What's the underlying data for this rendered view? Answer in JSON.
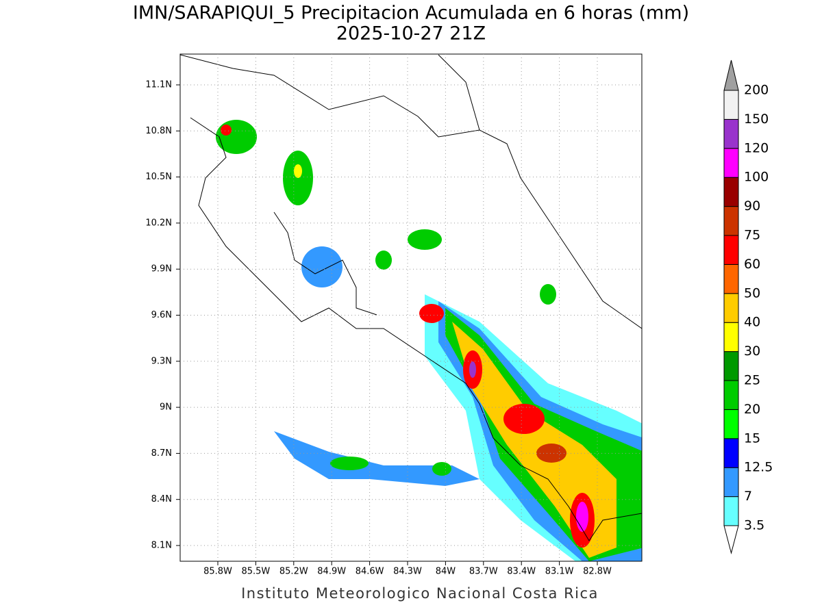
{
  "header": {
    "title": "IMN/SARAPIQUI_5 Precipitacion Acumulada en 6 horas (mm)",
    "subtitle": "2025-10-27 21Z"
  },
  "map": {
    "x_ticks": [
      "85.8W",
      "85.5W",
      "85.2W",
      "84.9W",
      "84.6W",
      "84.3W",
      "84W",
      "83.7W",
      "83.4W",
      "83.1W",
      "82.8W"
    ],
    "y_ticks": [
      "11.1N",
      "10.8N",
      "10.5N",
      "10.2N",
      "9.9N",
      "9.6N",
      "9.3N",
      "9N",
      "8.7N",
      "8.4N",
      "8.1N"
    ]
  },
  "colorbar": {
    "levels": [
      3.5,
      7,
      12.5,
      15,
      20,
      25,
      30,
      40,
      50,
      60,
      75,
      90,
      100,
      120,
      150,
      200
    ],
    "colors": [
      "#ffffff",
      "#66ffff",
      "#3399ff",
      "#0000ff",
      "#00ff00",
      "#00cc00",
      "#009900",
      "#ffff00",
      "#ffcc00",
      "#ff6600",
      "#ff0000",
      "#cc3300",
      "#990000",
      "#ff00ff",
      "#9933cc",
      "#f2f2f2",
      "#a0a0a0"
    ]
  },
  "footer": "Instituto Meteorologico Nacional Costa Rica"
}
